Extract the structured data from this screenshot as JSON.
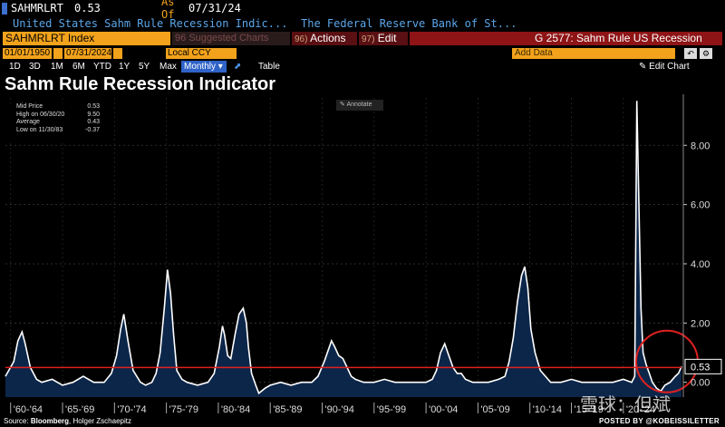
{
  "header": {
    "ticker": "SAHMRLRT",
    "last_value": "0.53",
    "as_of_label": "As Of",
    "as_of_date": "07/31/24",
    "description": "United States Sahm Rule Recession Indic...",
    "source_desc": "The Federal Reserve Bank of St..."
  },
  "toolbar": {
    "security": "SAHMRLRT Index",
    "suggested_num": "96",
    "suggested": "Suggested Charts",
    "actions_num": "96)",
    "actions": "Actions",
    "edit_num": "97)",
    "edit": "Edit",
    "page_title": "G 2577: Sahm Rule US Recession"
  },
  "dates": {
    "start": "01/01/1950",
    "end": "07/31/2024",
    "currency": "Local CCY",
    "add_data": "Add Data"
  },
  "periods": [
    "1D",
    "3D",
    "1M",
    "6M",
    "YTD",
    "1Y",
    "5Y",
    "Max"
  ],
  "period_selected": "Monthly",
  "table_label": "Table",
  "edit_chart": "Edit Chart",
  "chart_data": {
    "type": "area",
    "title": "Sahm Rule Recession Indicator",
    "annotate": "Annotate",
    "legend": [
      {
        "label": "Mid Price",
        "value": "0.53"
      },
      {
        "label": "High on 06/30/20",
        "value": "9.50"
      },
      {
        "label": "Average",
        "value": "0.43"
      },
      {
        "label": "Low on 11/30/83",
        "value": "-0.37"
      }
    ],
    "ylim": [
      -0.5,
      9.6
    ],
    "yticks": [
      0,
      2,
      4,
      6,
      8
    ],
    "ytick_labels": [
      "0.00",
      "2.00",
      "4.00",
      "6.00",
      "8.00"
    ],
    "xlim": [
      1959.5,
      2024.6
    ],
    "xticks": [
      1960,
      1965,
      1970,
      1975,
      1980,
      1985,
      1990,
      1995,
      2000,
      2005,
      2010,
      2014,
      2019
    ],
    "xtick_labels": [
      "'60-'64",
      "'65-'69",
      "'70-'74",
      "'75-'79",
      "'80-'84",
      "'85-'89",
      "'90-'94",
      "'95-'99",
      "'00-'04",
      "'05-'09",
      "'10-'14",
      "'15-'19",
      "'20-'24"
    ],
    "reference_line": 0.5,
    "last_value_label": "0.53",
    "highlight": "circle around 2023-2024 rise",
    "series": [
      {
        "name": "Sahm Rule Recession Indicator",
        "x": [
          1959.5,
          1960.3,
          1960.7,
          1961.1,
          1961.4,
          1961.9,
          1962.5,
          1963.0,
          1964.0,
          1965.0,
          1966.0,
          1967.0,
          1968.0,
          1969.0,
          1969.7,
          1970.2,
          1970.6,
          1970.9,
          1971.3,
          1971.8,
          1972.5,
          1973.0,
          1973.6,
          1974.0,
          1974.4,
          1974.8,
          1975.1,
          1975.4,
          1975.7,
          1976.0,
          1976.5,
          1977.0,
          1978.0,
          1979.0,
          1979.6,
          1980.1,
          1980.4,
          1980.6,
          1980.9,
          1981.2,
          1981.6,
          1982.0,
          1982.4,
          1982.7,
          1982.9,
          1983.2,
          1983.6,
          1983.9,
          1984.5,
          1985.0,
          1986.0,
          1987.0,
          1988.0,
          1989.0,
          1989.6,
          1990.2,
          1990.6,
          1990.9,
          1991.2,
          1991.6,
          1992.0,
          1992.4,
          1992.8,
          1993.2,
          1994.0,
          1995.0,
          1996.0,
          1997.0,
          1998.0,
          1999.0,
          2000.0,
          2000.6,
          2001.0,
          2001.4,
          2001.8,
          2002.2,
          2002.6,
          2003.0,
          2003.4,
          2003.8,
          2004.5,
          2005.0,
          2006.0,
          2007.0,
          2007.6,
          2008.0,
          2008.4,
          2008.8,
          2009.2,
          2009.5,
          2009.8,
          2010.1,
          2010.5,
          2011.0,
          2011.5,
          2012.0,
          2013.0,
          2014.0,
          2015.0,
          2016.0,
          2017.0,
          2018.0,
          2019.0,
          2019.8,
          2020.1,
          2020.3,
          2020.5,
          2020.7,
          2020.9,
          2021.2,
          2021.5,
          2021.8,
          2022.2,
          2022.6,
          2023.0,
          2023.5,
          2024.0,
          2024.3,
          2024.6
        ],
        "y": [
          0.2,
          0.7,
          1.4,
          1.7,
          1.3,
          0.5,
          0.1,
          0.0,
          0.1,
          -0.1,
          0.0,
          0.2,
          0.0,
          0.0,
          0.3,
          0.9,
          1.8,
          2.3,
          1.4,
          0.4,
          0.0,
          -0.1,
          0.0,
          0.3,
          1.0,
          2.5,
          3.8,
          3.0,
          1.6,
          0.4,
          0.1,
          0.0,
          -0.1,
          0.0,
          0.3,
          1.2,
          1.9,
          1.6,
          0.9,
          0.8,
          1.6,
          2.3,
          2.5,
          2.0,
          1.2,
          0.3,
          -0.1,
          -0.37,
          -0.2,
          -0.1,
          0.0,
          -0.1,
          0.0,
          0.0,
          0.2,
          0.7,
          1.1,
          1.4,
          1.2,
          0.9,
          0.8,
          0.5,
          0.2,
          0.1,
          0.0,
          0.0,
          0.1,
          0.0,
          0.0,
          0.0,
          0.0,
          0.1,
          0.4,
          1.0,
          1.3,
          0.9,
          0.5,
          0.3,
          0.3,
          0.1,
          0.0,
          0.0,
          0.0,
          0.1,
          0.2,
          0.7,
          1.5,
          2.7,
          3.6,
          3.9,
          3.2,
          1.8,
          1.0,
          0.4,
          0.2,
          0.0,
          0.0,
          0.1,
          0.0,
          0.0,
          0.0,
          0.0,
          0.1,
          0.0,
          0.2,
          9.5,
          6.0,
          2.5,
          1.0,
          0.6,
          0.3,
          0.0,
          -0.2,
          -0.3,
          -0.1,
          0.0,
          0.2,
          0.3,
          0.53
        ]
      }
    ]
  },
  "footer": {
    "source_label": "Source:",
    "source_name": "Bloomberg",
    "author": ", Holger Zschaepitz",
    "posted": "POSTED BY @KOBEISSILETTER",
    "watermark": "雪球：但斌"
  }
}
